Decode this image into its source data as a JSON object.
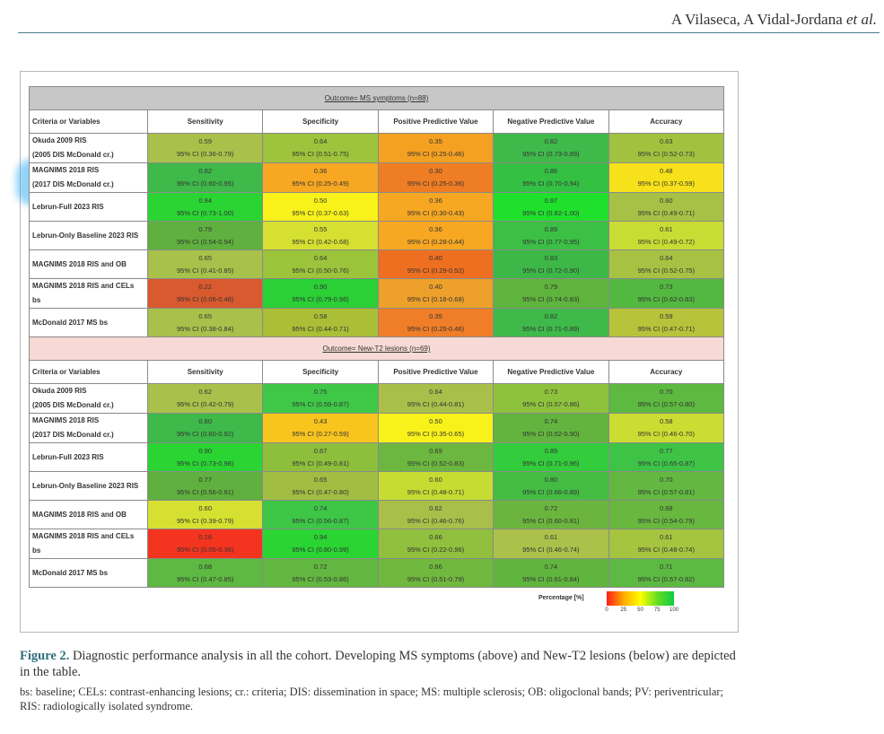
{
  "running_head": {
    "authors": "A Vilaseca, A Vidal-Jordana",
    "etal": "et al."
  },
  "colors": {
    "rule": "#4a7a8c",
    "figure_label": "#2f6f7f"
  },
  "columns": [
    "Criteria or Variables",
    "Sensitivity",
    "Specificity",
    "Positive Predictive Value",
    "Negative Predictive Value",
    "Accuracy"
  ],
  "sections": [
    {
      "outcome": "Outcome= MS symptoms (n=88)",
      "rows": [
        {
          "label": [
            "Okuda 2009 RIS",
            "(2005 DIS McDonald cr.)"
          ],
          "cells": [
            {
              "value": "0.59",
              "ci": "95% CI (0.36-0.79)",
              "color": "#a9c14a"
            },
            {
              "value": "0.64",
              "ci": "95% CI (0.51-0.75)",
              "color": "#9dc43c"
            },
            {
              "value": "0.35",
              "ci": "95% CI (0.25-0.46)",
              "color": "#f4a021"
            },
            {
              "value": "0.82",
              "ci": "95% CI (0.73-0.89)",
              "color": "#3fb94a"
            },
            {
              "value": "0.63",
              "ci": "95% CI (0.52-0.73)",
              "color": "#a2c23f"
            }
          ]
        },
        {
          "label": [
            "MAGNIMS 2018 RIS",
            "(2017 DIS McDonald cr.)"
          ],
          "cells": [
            {
              "value": "0.82",
              "ci": "95% CI (0.60-0.95)",
              "color": "#3fb94a"
            },
            {
              "value": "0.36",
              "ci": "95% CI (0.25-0.49)",
              "color": "#f7a722"
            },
            {
              "value": "0.30",
              "ci": "95% CI (0.25-0.36)",
              "color": "#ef7d24"
            },
            {
              "value": "0.86",
              "ci": "95% CI (0.70-0.94)",
              "color": "#34c043"
            },
            {
              "value": "0.48",
              "ci": "95% CI (0.37-0.59)",
              "color": "#f6e11a"
            }
          ]
        },
        {
          "label": [
            "Lebrun-Full 2023 RIS"
          ],
          "cells": [
            {
              "value": "0.94",
              "ci": "95% CI (0.73-1.00)",
              "color": "#2ad533"
            },
            {
              "value": "0.50",
              "ci": "95% CI (0.37-0.63)",
              "color": "#f9f21a"
            },
            {
              "value": "0.36",
              "ci": "95% CI (0.30-0.43)",
              "color": "#f7a722"
            },
            {
              "value": "0.97",
              "ci": "95% CI (0.82-1.00)",
              "color": "#1fe02c"
            },
            {
              "value": "0.60",
              "ci": "95% CI (0.49-0.71)",
              "color": "#a6c145"
            }
          ]
        },
        {
          "label": [
            "Lebrun-Only Baseline 2023 RIS"
          ],
          "cells": [
            {
              "value": "0.79",
              "ci": "95% CI (0.54-0.94)",
              "color": "#5fb03e"
            },
            {
              "value": "0.55",
              "ci": "95% CI (0.42-0.68)",
              "color": "#d6e030"
            },
            {
              "value": "0.36",
              "ci": "95% CI (0.28-0.44)",
              "color": "#f7a722"
            },
            {
              "value": "0.89",
              "ci": "95% CI (0.77-0.95)",
              "color": "#3bbf45"
            },
            {
              "value": "0.61",
              "ci": "95% CI (0.49-0.72)",
              "color": "#c9dc33"
            }
          ]
        },
        {
          "label": [
            "MAGNIMS 2018 RIS and OB"
          ],
          "cells": [
            {
              "value": "0.65",
              "ci": "95% CI (0.41-0.85)",
              "color": "#a8c14a"
            },
            {
              "value": "0.64",
              "ci": "95% CI (0.50-0.76)",
              "color": "#9cc43b"
            },
            {
              "value": "0.40",
              "ci": "95% CI (0.29-0.52)",
              "color": "#ef6f20"
            },
            {
              "value": "0.83",
              "ci": "95% CI (0.72-0.90)",
              "color": "#3db848"
            },
            {
              "value": "0.64",
              "ci": "95% CI (0.52-0.75)",
              "color": "#a7c243"
            }
          ]
        },
        {
          "label": [
            "MAGNIMS 2018 RIS and CELs",
            "bs"
          ],
          "cells": [
            {
              "value": "0.22",
              "ci": "95% CI (0.06-0.48)",
              "color": "#d95a2e"
            },
            {
              "value": "0.90",
              "ci": "95% CI (0.79-0.96)",
              "color": "#2ad035"
            },
            {
              "value": "0.40",
              "ci": "95% CI (0.18-0.68)",
              "color": "#eda02a"
            },
            {
              "value": "0.79",
              "ci": "95% CI (0.74-0.83)",
              "color": "#5eb43c"
            },
            {
              "value": "0.73",
              "ci": "95% CI (0.62-0.83)",
              "color": "#53b840"
            }
          ]
        },
        {
          "label": [
            "McDonald 2017 MS bs"
          ],
          "cells": [
            {
              "value": "0.65",
              "ci": "95% CI (0.38-0.84)",
              "color": "#a9c04b"
            },
            {
              "value": "0.58",
              "ci": "95% CI (0.44-0.71)",
              "color": "#aabf36"
            },
            {
              "value": "0.35",
              "ci": "95% CI (0.25-0.46)",
              "color": "#f07e28"
            },
            {
              "value": "0.82",
              "ci": "95% CI (0.71-0.89)",
              "color": "#3fb94a"
            },
            {
              "value": "0.59",
              "ci": "95% CI (0.47-0.71)",
              "color": "#b7c33a"
            }
          ]
        }
      ]
    },
    {
      "outcome": "Outcome= New-T2 lesions (n=69)",
      "rows": [
        {
          "label": [
            "Okuda 2009 RIS",
            "(2005 DIS McDonald cr.)"
          ],
          "cells": [
            {
              "value": "0.62",
              "ci": "95% CI (0.42-0.79)",
              "color": "#a9c14a"
            },
            {
              "value": "0.75",
              "ci": "95% CI (0.59-0.87)",
              "color": "#3fc847"
            },
            {
              "value": "0.64",
              "ci": "95% CI (0.44-0.81)",
              "color": "#a8c04a"
            },
            {
              "value": "0.73",
              "ci": "95% CI (0.57-0.86)",
              "color": "#8fc23c"
            },
            {
              "value": "0.70",
              "ci": "95% CI (0.57-0.80)",
              "color": "#5db940"
            }
          ]
        },
        {
          "label": [
            "MAGNIMS 2018 RIS",
            "(2017 DIS McDonald cr.)"
          ],
          "cells": [
            {
              "value": "0.80",
              "ci": "95% CI (0.60-0.92)",
              "color": "#3fb94a"
            },
            {
              "value": "0.43",
              "ci": "95% CI (0.27-0.59)",
              "color": "#f8c51f"
            },
            {
              "value": "0.50",
              "ci": "95% CI (0.35-0.65)",
              "color": "#f9f21a"
            },
            {
              "value": "0.74",
              "ci": "95% CI (0.52-0.90)",
              "color": "#63b43e"
            },
            {
              "value": "0.58",
              "ci": "95% CI (0.46-0.70)",
              "color": "#cbdc33"
            }
          ]
        },
        {
          "label": [
            "Lebrun-Full 2023 RIS"
          ],
          "cells": [
            {
              "value": "0.90",
              "ci": "95% CI (0.73-0.98)",
              "color": "#2ad533"
            },
            {
              "value": "0.67",
              "ci": "95% CI (0.49-0.81)",
              "color": "#8dbf3d"
            },
            {
              "value": "0.69",
              "ci": "95% CI (0.52-0.83)",
              "color": "#6cb73f"
            },
            {
              "value": "0.89",
              "ci": "95% CI (0.71-0.96)",
              "color": "#33cc3c"
            },
            {
              "value": "0.77",
              "ci": "95% CI (0.65-0.87)",
              "color": "#3fc347"
            }
          ]
        },
        {
          "label": [
            "Lebrun-Only Baseline 2023 RIS"
          ],
          "cells": [
            {
              "value": "0.77",
              "ci": "95% CI (0.56-0.91)",
              "color": "#5fb03e"
            },
            {
              "value": "0.65",
              "ci": "95% CI (0.47-0.80)",
              "color": "#a1be43"
            },
            {
              "value": "0.60",
              "ci": "95% CI (0.48-0.71)",
              "color": "#c6dc32"
            },
            {
              "value": "0.80",
              "ci": "95% CI (0.66-0.89)",
              "color": "#44bc44"
            },
            {
              "value": "0.70",
              "ci": "95% CI (0.57-0.81)",
              "color": "#62b841"
            }
          ]
        },
        {
          "label": [
            "MAGNIMS 2018 RIS and OB"
          ],
          "cells": [
            {
              "value": "0.60",
              "ci": "95% CI (0.39-0.79)",
              "color": "#d6e030"
            },
            {
              "value": "0.74",
              "ci": "95% CI (0.56-0.87)",
              "color": "#3ec647"
            },
            {
              "value": "0.62",
              "ci": "95% CI (0.46-0.76)",
              "color": "#a8c04a"
            },
            {
              "value": "0.72",
              "ci": "95% CI (0.60-0.81)",
              "color": "#6bb53f"
            },
            {
              "value": "0.68",
              "ci": "95% CI (0.54-0.79)",
              "color": "#68b73f"
            }
          ]
        },
        {
          "label": [
            "MAGNIMS 2018 RIS and CELs",
            "bs"
          ],
          "cells": [
            {
              "value": "0.16",
              "ci": "95% CI (0.05-0.36)",
              "color": "#f3341f"
            },
            {
              "value": "0.94",
              "ci": "95% CI (0.80-0.99)",
              "color": "#2ad533"
            },
            {
              "value": "0.66",
              "ci": "95% CI (0.22-0.96)",
              "color": "#90c03d"
            },
            {
              "value": "0.61",
              "ci": "95% CI (0.46-0.74)",
              "color": "#abc14a"
            },
            {
              "value": "0.61",
              "ci": "95% CI (0.48-0.74)",
              "color": "#a5c43f"
            }
          ]
        },
        {
          "label": [
            "McDonald 2017 MS bs"
          ],
          "cells": [
            {
              "value": "0.68",
              "ci": "95% CI (0.47-0.85)",
              "color": "#5db941"
            },
            {
              "value": "0.72",
              "ci": "95% CI (0.53-0.86)",
              "color": "#62b740"
            },
            {
              "value": "0.66",
              "ci": "95% CI (0.51-0.79)",
              "color": "#71b83f"
            },
            {
              "value": "0.74",
              "ci": "95% CI (0.61-0.84)",
              "color": "#60b53e"
            },
            {
              "value": "0.71",
              "ci": "95% CI (0.57-0.82)",
              "color": "#5cb941"
            }
          ]
        }
      ]
    }
  ],
  "legend": {
    "title": "Percentage [%]",
    "ticks": [
      "0",
      "25",
      "50",
      "75",
      "100"
    ]
  },
  "caption": {
    "label": "Figure 2.",
    "text": "Diagnostic performance analysis in all the cohort. Developing MS symptoms (above) and New-T2 lesions (below) are depicted in the table.",
    "notes": "bs: baseline; CELs: contrast-enhancing lesions; cr.: criteria; DIS: dissemination in space; MS: multiple sclerosis; OB: oligoclonal bands; PV: periventricular; RIS: radiologically isolated syndrome."
  }
}
